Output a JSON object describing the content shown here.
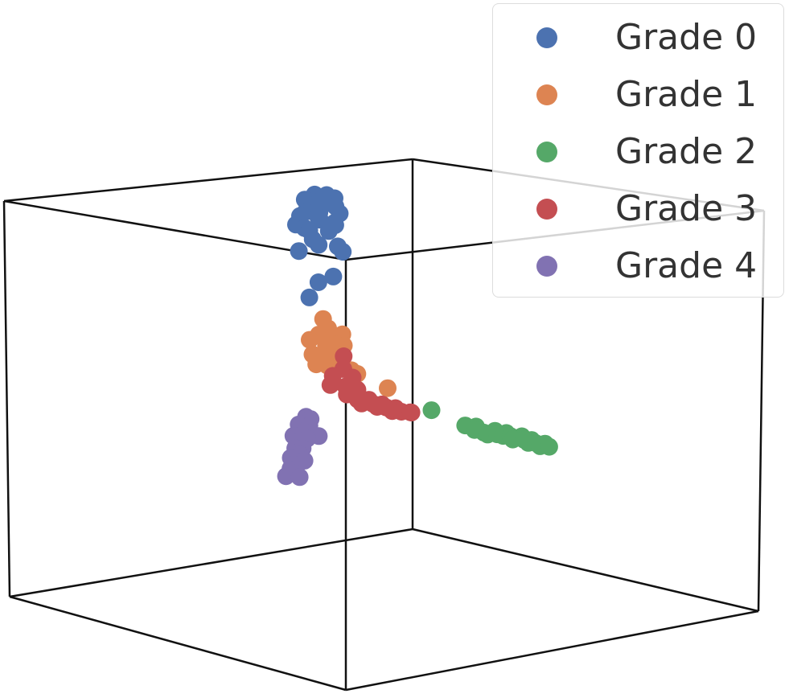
{
  "chart_data": {
    "type": "scatter",
    "projection": "3d",
    "title": "",
    "xlabel": "",
    "ylabel": "",
    "zlabel": "",
    "grid": false,
    "axes_visible": false,
    "legend_placement": "top-right",
    "series": [
      {
        "name": "Grade 0",
        "color": "#4c72b0",
        "points": [
          [
            -0.38,
            0.0,
            0.98
          ],
          [
            -0.37,
            0.05,
            0.97
          ],
          [
            -0.39,
            -0.04,
            0.96
          ],
          [
            -0.36,
            0.08,
            0.95
          ],
          [
            -0.38,
            0.02,
            0.94
          ],
          [
            -0.37,
            -0.02,
            0.93
          ],
          [
            -0.39,
            0.06,
            0.92
          ],
          [
            -0.36,
            -0.06,
            0.91
          ],
          [
            -0.38,
            0.1,
            0.9
          ],
          [
            -0.37,
            -0.08,
            0.89
          ],
          [
            -0.39,
            0.03,
            0.88
          ],
          [
            -0.36,
            0.0,
            0.87
          ],
          [
            -0.38,
            0.12,
            0.86
          ],
          [
            -0.37,
            -0.1,
            0.85
          ],
          [
            -0.4,
            0.04,
            0.84
          ],
          [
            -0.35,
            0.07,
            0.83
          ],
          [
            -0.38,
            -0.05,
            0.82
          ],
          [
            -0.37,
            0.09,
            0.81
          ],
          [
            -0.39,
            -0.02,
            0.8
          ],
          [
            -0.36,
            0.05,
            0.79
          ],
          [
            -0.42,
            0.02,
            0.74
          ],
          [
            -0.36,
            0.0,
            0.73
          ],
          [
            -0.32,
            0.06,
            0.72
          ],
          [
            -0.38,
            -0.08,
            0.71
          ],
          [
            -0.34,
            0.1,
            0.68
          ],
          [
            -0.3,
            0.02,
            0.58
          ],
          [
            -0.34,
            -0.02,
            0.55
          ],
          [
            -0.42,
            0.0,
            0.45
          ]
        ]
      },
      {
        "name": "Grade 1",
        "color": "#dd8452",
        "points": [
          [
            -0.34,
            0.0,
            0.36
          ],
          [
            -0.36,
            0.04,
            0.3
          ],
          [
            -0.33,
            -0.03,
            0.29
          ],
          [
            -0.3,
            0.06,
            0.28
          ],
          [
            -0.36,
            -0.05,
            0.26
          ],
          [
            -0.33,
            0.02,
            0.25
          ],
          [
            -0.3,
            -0.02,
            0.24
          ],
          [
            -0.28,
            0.05,
            0.23
          ],
          [
            -0.36,
            0.08,
            0.21
          ],
          [
            -0.32,
            -0.07,
            0.2
          ],
          [
            -0.29,
            0.03,
            0.19
          ],
          [
            -0.35,
            0.0,
            0.17
          ],
          [
            -0.31,
            0.06,
            0.16
          ],
          [
            -0.27,
            -0.04,
            0.15
          ],
          [
            -0.36,
            -0.02,
            0.13
          ],
          [
            -0.32,
            0.04,
            0.12
          ],
          [
            -0.28,
            0.0,
            0.12
          ],
          [
            -0.2,
            0.02,
            0.13
          ],
          [
            -0.14,
            0.0,
            0.13
          ],
          [
            0.04,
            0.0,
            0.1
          ]
        ]
      },
      {
        "name": "Grade 2",
        "color": "#55a868",
        "points": [
          [
            0.3,
            0.0,
            0.05
          ],
          [
            0.5,
            0.0,
            0.02
          ],
          [
            0.54,
            0.02,
            0.02
          ],
          [
            0.58,
            -0.02,
            0.02
          ],
          [
            0.61,
            0.0,
            0.01
          ],
          [
            0.64,
            0.03,
            0.02
          ],
          [
            0.67,
            -0.03,
            0.02
          ],
          [
            0.69,
            0.0,
            0.02
          ],
          [
            0.72,
            0.02,
            0.03
          ],
          [
            0.75,
            -0.02,
            0.03
          ],
          [
            0.77,
            0.0,
            0.03
          ],
          [
            0.8,
            0.03,
            0.03
          ],
          [
            0.82,
            -0.03,
            0.03
          ],
          [
            0.85,
            0.0,
            0.03
          ],
          [
            0.87,
            0.02,
            0.03
          ],
          [
            0.9,
            -0.02,
            0.03
          ],
          [
            0.92,
            0.0,
            0.03
          ],
          [
            0.95,
            0.02,
            0.03
          ],
          [
            0.97,
            -0.02,
            0.03
          ],
          [
            1.0,
            0.0,
            0.03
          ]
        ]
      },
      {
        "name": "Grade 3",
        "color": "#c44e52",
        "points": [
          [
            -0.22,
            0.0,
            0.2
          ],
          [
            -0.26,
            0.03,
            0.12
          ],
          [
            -0.25,
            -0.03,
            0.1
          ],
          [
            -0.23,
            0.05,
            0.08
          ],
          [
            -0.24,
            -0.05,
            0.06
          ],
          [
            -0.21,
            0.0,
            0.05
          ],
          [
            -0.19,
            0.04,
            0.03
          ],
          [
            -0.18,
            -0.02,
            0.02
          ],
          [
            -0.16,
            0.02,
            0.01
          ],
          [
            -0.14,
            0.0,
            0.0
          ],
          [
            -0.11,
            0.03,
            0.0
          ],
          [
            -0.08,
            -0.03,
            0.0
          ],
          [
            -0.05,
            0.0,
            0.0
          ],
          [
            -0.02,
            0.02,
            0.0
          ],
          [
            0.0,
            -0.02,
            0.0
          ],
          [
            0.03,
            0.0,
            0.0
          ],
          [
            0.06,
            0.02,
            0.0
          ],
          [
            0.09,
            -0.02,
            0.0
          ],
          [
            0.12,
            0.0,
            0.0
          ],
          [
            0.15,
            0.02,
            0.0
          ],
          [
            0.18,
            0.0,
            0.01
          ]
        ]
      },
      {
        "name": "Grade 4",
        "color": "#8172b2",
        "points": [
          [
            -0.45,
            0.0,
            -0.16
          ],
          [
            -0.46,
            0.03,
            -0.18
          ],
          [
            -0.47,
            -0.02,
            -0.2
          ],
          [
            -0.48,
            0.04,
            -0.22
          ],
          [
            -0.46,
            0.0,
            -0.24
          ],
          [
            -0.4,
            0.02,
            -0.25
          ],
          [
            -0.49,
            -0.03,
            -0.26
          ],
          [
            -0.47,
            0.02,
            -0.28
          ],
          [
            -0.5,
            0.0,
            -0.3
          ],
          [
            -0.48,
            -0.03,
            -0.32
          ],
          [
            -0.51,
            0.03,
            -0.34
          ],
          [
            -0.49,
            0.0,
            -0.36
          ],
          [
            -0.52,
            -0.02,
            -0.38
          ],
          [
            -0.5,
            0.03,
            -0.4
          ],
          [
            -0.53,
            0.0,
            -0.42
          ],
          [
            -0.51,
            -0.03,
            -0.43
          ],
          [
            -0.54,
            0.02,
            -0.45
          ],
          [
            -0.52,
            0.0,
            -0.46
          ],
          [
            -0.55,
            -0.02,
            -0.48
          ],
          [
            -0.53,
            0.03,
            -0.49
          ]
        ]
      }
    ]
  }
}
